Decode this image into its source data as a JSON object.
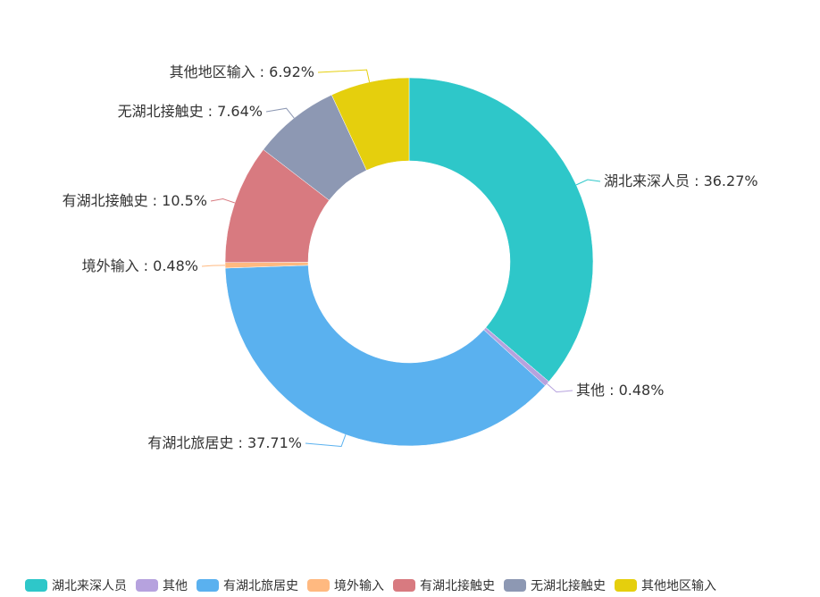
{
  "chart_data": {
    "type": "pie",
    "variant": "donut",
    "legend_position": "bottom",
    "slices": [
      {
        "name": "湖北来深人员",
        "value": 36.27,
        "label": "湖北来深人员 : 36.27%",
        "color": "#2ec7c9"
      },
      {
        "name": "其他",
        "value": 0.48,
        "label": "其他 : 0.48%",
        "color": "#b6a2de"
      },
      {
        "name": "有湖北旅居史",
        "value": 37.71,
        "label": "有湖北旅居史 : 37.71%",
        "color": "#5ab1ef"
      },
      {
        "name": "境外输入",
        "value": 0.48,
        "label": "境外输入 : 0.48%",
        "color": "#ffb980"
      },
      {
        "name": "有湖北接触史",
        "value": 10.5,
        "label": "有湖北接触史 : 10.5%",
        "color": "#d87a80"
      },
      {
        "name": "无湖北接触史",
        "value": 7.64,
        "label": "无湖北接触史 : 7.64%",
        "color": "#8d98b3"
      },
      {
        "name": "其他地区输入",
        "value": 6.92,
        "label": "其他地区输入 : 6.92%",
        "color": "#e5cf0d"
      }
    ]
  }
}
